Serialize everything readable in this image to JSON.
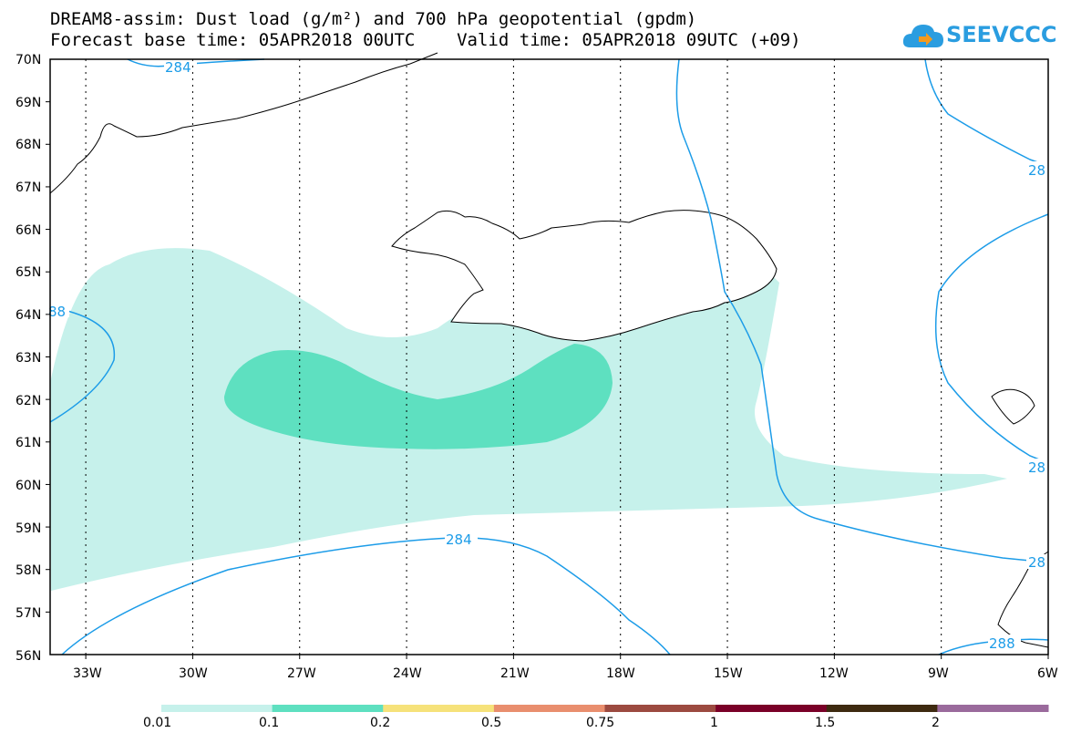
{
  "title_line1": "DREAM8-assim: Dust load (g/m²) and 700 hPa geopotential (gpdm)",
  "title_line2": "Forecast base time: 05APR2018 00UTC    Valid time: 05APR2018 09UTC (+09)",
  "logo": {
    "text": "SEEVCCC",
    "icon": "cloud-arrow-icon",
    "color": "#1c9ce8"
  },
  "map": {
    "lat_range": [
      56,
      70
    ],
    "lon_range": [
      -34,
      -6
    ],
    "lat_labels": [
      "70N",
      "69N",
      "68N",
      "67N",
      "66N",
      "65N",
      "64N",
      "63N",
      "62N",
      "61N",
      "60N",
      "59N",
      "58N",
      "57N",
      "56N"
    ],
    "lon_labels": [
      "33W",
      "30W",
      "27W",
      "24W",
      "21W",
      "18W",
      "15W",
      "12W",
      "9W",
      "6W"
    ],
    "contour_color": "#1c9ce8",
    "contour_labels": [
      "284",
      "88",
      "284",
      "28",
      "28",
      "288",
      "28"
    ]
  },
  "colorbar": {
    "colors": [
      "#c6f1eb",
      "#5ee0c0",
      "#f6e27a",
      "#e98e6e",
      "#9c4a40",
      "#7a0028",
      "#3e2a10",
      "#9a6a9c"
    ],
    "labels": [
      "0.01",
      "0.1",
      "0.2",
      "0.5",
      "0.75",
      "1",
      "1.5",
      "2"
    ]
  }
}
